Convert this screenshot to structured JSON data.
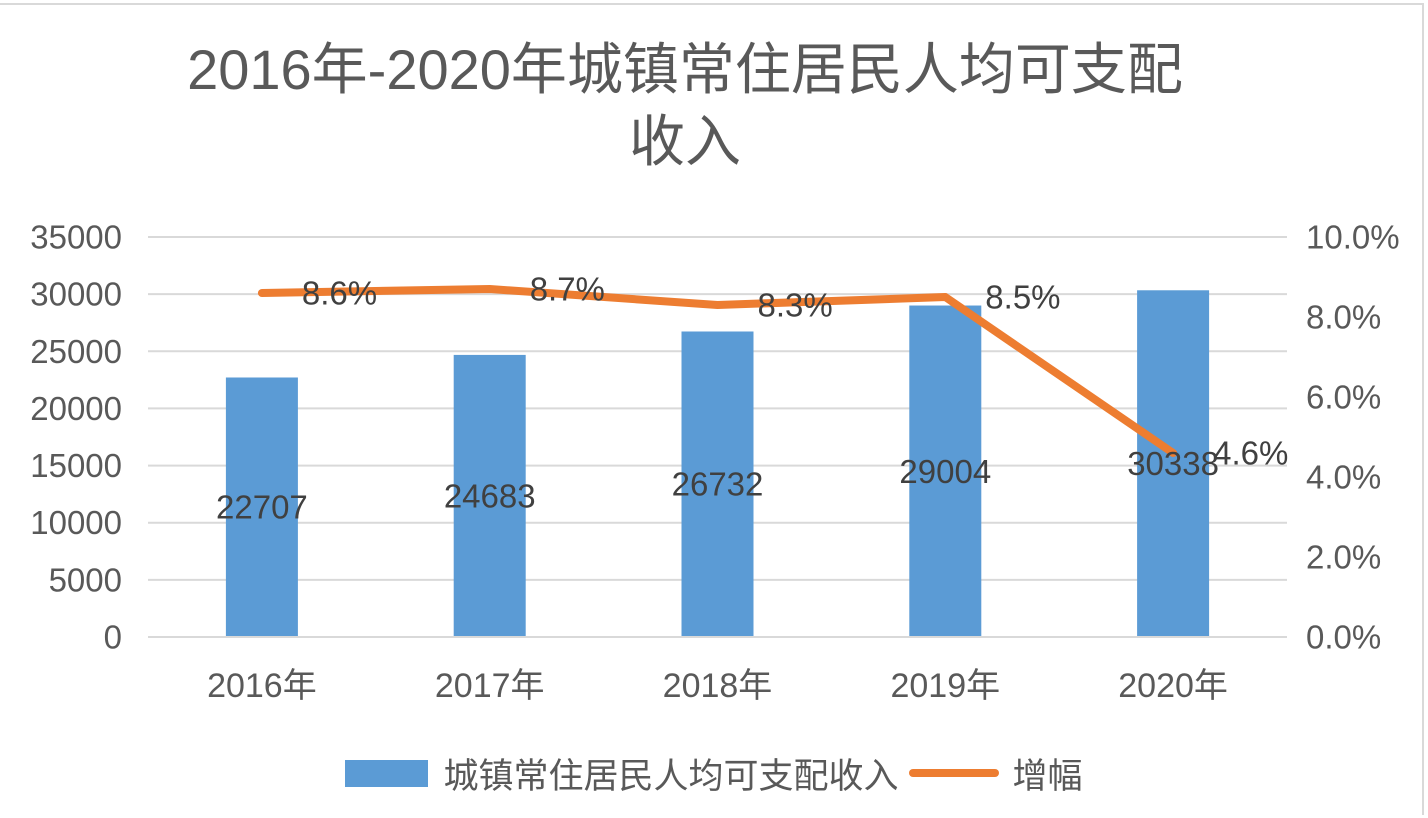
{
  "chart_data": {
    "type": "bar",
    "title": "2016年-2020年城镇常住居民人均可支配收入",
    "categories": [
      "2016年",
      "2017年",
      "2018年",
      "2019年",
      "2020年"
    ],
    "series": [
      {
        "name": "城镇常住居民人均可支配收入",
        "type": "bar",
        "axis": "left",
        "color": "#5b9bd5",
        "values": [
          22707,
          24683,
          26732,
          29004,
          30338
        ],
        "labels": [
          "22707",
          "24683",
          "26732",
          "29004",
          "30338"
        ]
      },
      {
        "name": "增幅",
        "type": "line",
        "axis": "right",
        "unit": "%",
        "color": "#ed7d31",
        "values": [
          8.6,
          8.7,
          8.3,
          8.5,
          4.6
        ],
        "labels": [
          "8.6%",
          "8.7%",
          "8.3%",
          "8.5%",
          "4.6%"
        ]
      }
    ],
    "y_left": {
      "min": 0,
      "max": 35000,
      "step": 5000,
      "ticks": [
        "35000",
        "30000",
        "25000",
        "20000",
        "15000",
        "10000",
        "5000",
        "0"
      ]
    },
    "y_right": {
      "min": 0,
      "max": 10,
      "step": 2,
      "unit": "%",
      "ticks": [
        "10.0%",
        "8.0%",
        "6.0%",
        "4.0%",
        "2.0%",
        "0.0%"
      ]
    },
    "grid": true,
    "legend": "bottom"
  }
}
